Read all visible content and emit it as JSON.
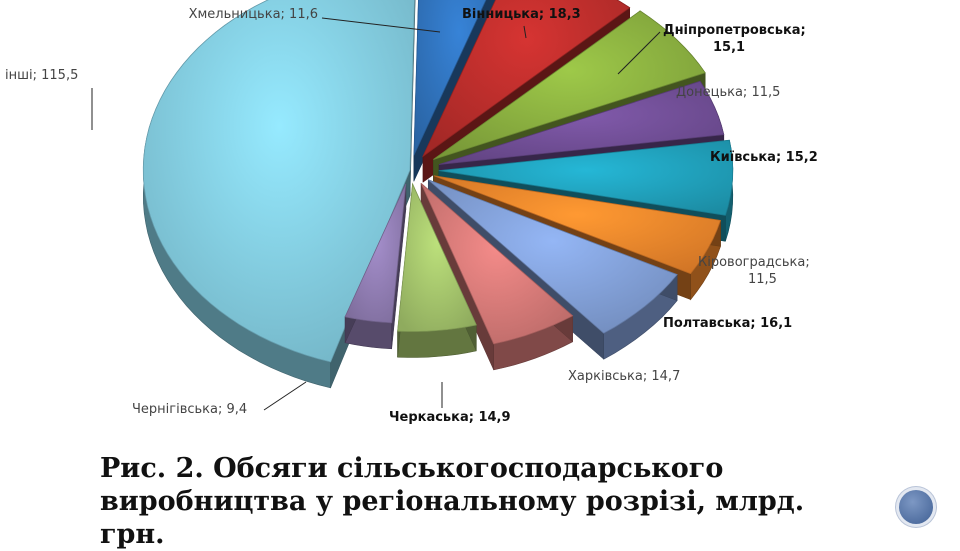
{
  "chart_data": {
    "type": "pie",
    "style": "exploded 3D pie",
    "unit": "млрд. грн",
    "slices": [
      {
        "label": "Хмельницька",
        "value": 11.6,
        "value_text": "11,6",
        "color": "#2f6fb6",
        "bold": false
      },
      {
        "label": "Вінницька",
        "value": 18.3,
        "value_text": "18,3",
        "color": "#b52c2a",
        "bold": true
      },
      {
        "label": "Дніпропетровська",
        "value": 15.1,
        "value_text": "15,1",
        "color": "#86aa3e",
        "bold": true
      },
      {
        "label": "Донецька",
        "value": 11.5,
        "value_text": "11,5",
        "color": "#6d4c91",
        "bold": false
      },
      {
        "label": "Київська",
        "value": 15.2,
        "value_text": "15,2",
        "color": "#1f9bb5",
        "bold": true
      },
      {
        "label": "Кіровоградська",
        "value": 11.5,
        "value_text": "11,5",
        "color": "#e8822a",
        "bold": false
      },
      {
        "label": "Полтавська",
        "value": 16.1,
        "value_text": "16,1",
        "color": "#7d9ad0",
        "bold": true
      },
      {
        "label": "Харківська",
        "value": 14.7,
        "value_text": "14,7",
        "color": "#cf7674",
        "bold": false
      },
      {
        "label": "Черкаська",
        "value": 14.9,
        "value_text": "14,9",
        "color": "#9fbe68",
        "bold": true
      },
      {
        "label": "Чернігівська",
        "value": 9.4,
        "value_text": "9,4",
        "color": "#8c79ad",
        "bold": false
      },
      {
        "label": "інші",
        "value": 115.5,
        "value_text": "115,5",
        "color": "#7fc6d9",
        "bold": false
      }
    ]
  },
  "caption": {
    "line1": "Рис. 2. Обсяги сільськогосподарського",
    "line2": "виробництва у регіональному розрізі, млрд. грн."
  }
}
